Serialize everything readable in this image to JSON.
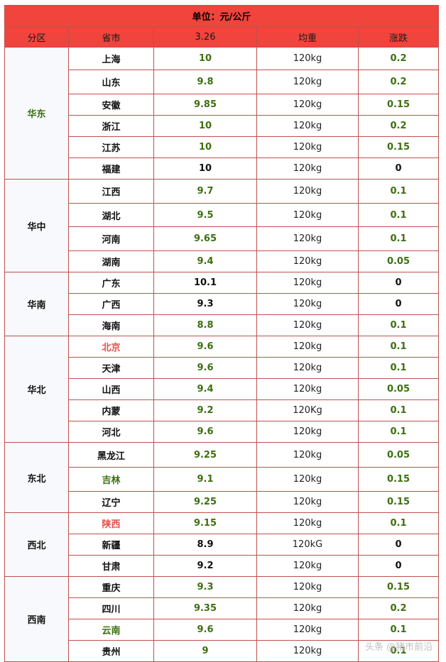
{
  "unit_label": "单位：元/公斤",
  "headers": {
    "region": "分区",
    "province": "省市",
    "date": "3.26",
    "weight": "均重",
    "change": "涨跌"
  },
  "colors": {
    "header_bg": "#f0443c",
    "date_text": "#ffd400",
    "green": "#3d6f10",
    "red": "#e0504b",
    "border": "#c0504d"
  },
  "regions": [
    {
      "name": "华东",
      "name_color": "green",
      "rows": [
        {
          "province": "上海",
          "province_color": "dark",
          "price": "10",
          "price_color": "green",
          "weight": "120kg",
          "weight_color": "dark",
          "change": "0.2",
          "change_color": "green"
        },
        {
          "province": "山东",
          "province_color": "dark",
          "price": "9.8",
          "price_color": "green",
          "weight": "120kg",
          "weight_color": "dark",
          "change": "0.2",
          "change_color": "green"
        },
        {
          "province": "安徽",
          "province_color": "dark",
          "price": "9.85",
          "price_color": "green",
          "weight": "120kg",
          "weight_color": "dark",
          "change": "0.15",
          "change_color": "green"
        },
        {
          "province": "浙江",
          "province_color": "dark",
          "price": "10",
          "price_color": "green",
          "weight": "120kg",
          "weight_color": "dark",
          "change": "0.2",
          "change_color": "green"
        },
        {
          "province": "江苏",
          "province_color": "dark",
          "price": "10",
          "price_color": "green",
          "weight": "120kg",
          "weight_color": "dark",
          "change": "0.15",
          "change_color": "green"
        },
        {
          "province": "福建",
          "province_color": "dark",
          "price": "10",
          "price_color": "dark",
          "weight": "120kg",
          "weight_color": "red",
          "change": "0",
          "change_color": "dark"
        }
      ]
    },
    {
      "name": "华中",
      "name_color": "dark",
      "rows": [
        {
          "province": "江西",
          "province_color": "dark",
          "price": "9.7",
          "price_color": "green",
          "weight": "120kg",
          "weight_color": "dark",
          "change": "0.1",
          "change_color": "green"
        },
        {
          "province": "湖北",
          "province_color": "dark",
          "price": "9.5",
          "price_color": "green",
          "weight": "120kg",
          "weight_color": "dark",
          "change": "0.1",
          "change_color": "green"
        },
        {
          "province": "河南",
          "province_color": "dark",
          "price": "9.65",
          "price_color": "green",
          "weight": "120kg",
          "weight_color": "red",
          "change": "0.1",
          "change_color": "green"
        },
        {
          "province": "湖南",
          "province_color": "dark",
          "price": "9.4",
          "price_color": "green",
          "weight": "120kg",
          "weight_color": "dark",
          "change": "0.05",
          "change_color": "green"
        }
      ]
    },
    {
      "name": "华南",
      "name_color": "dark",
      "rows": [
        {
          "province": "广东",
          "province_color": "dark",
          "price": "10.1",
          "price_color": "dark",
          "weight": "120kg",
          "weight_color": "red",
          "change": "0",
          "change_color": "dark"
        },
        {
          "province": "广西",
          "province_color": "dark",
          "price": "9.3",
          "price_color": "dark",
          "weight": "120kg",
          "weight_color": "dark",
          "change": "0",
          "change_color": "dark"
        },
        {
          "province": "海南",
          "province_color": "dark",
          "price": "8.8",
          "price_color": "green",
          "weight": "120kg",
          "weight_color": "dark",
          "change": "0.1",
          "change_color": "green"
        }
      ]
    },
    {
      "name": "华北",
      "name_color": "dark",
      "rows": [
        {
          "province": "北京",
          "province_color": "red",
          "price": "9.6",
          "price_color": "green",
          "weight": "120kg",
          "weight_color": "dark",
          "change": "0.1",
          "change_color": "green"
        },
        {
          "province": "天津",
          "province_color": "dark",
          "price": "9.6",
          "price_color": "green",
          "weight": "120kg",
          "weight_color": "dark",
          "change": "0.1",
          "change_color": "green"
        },
        {
          "province": "山西",
          "province_color": "dark",
          "price": "9.4",
          "price_color": "green",
          "weight": "120kg",
          "weight_color": "dark",
          "change": "0.05",
          "change_color": "green"
        },
        {
          "province": "内蒙",
          "province_color": "dark",
          "price": "9.2",
          "price_color": "green",
          "weight": "120Kg",
          "weight_color": "dark",
          "change": "0.1",
          "change_color": "green"
        },
        {
          "province": "河北",
          "province_color": "dark",
          "price": "9.6",
          "price_color": "green",
          "weight": "120kg",
          "weight_color": "dark",
          "change": "0.1",
          "change_color": "green"
        }
      ]
    },
    {
      "name": "东北",
      "name_color": "dark",
      "rows": [
        {
          "province": "黑龙江",
          "province_color": "dark",
          "price": "9.25",
          "price_color": "green",
          "weight": "120kg",
          "weight_color": "dark",
          "change": "0.05",
          "change_color": "green"
        },
        {
          "province": "吉林",
          "province_color": "green",
          "price": "9.1",
          "price_color": "green",
          "weight": "120kg",
          "weight_color": "dark",
          "change": "0.15",
          "change_color": "green"
        },
        {
          "province": "辽宁",
          "province_color": "dark",
          "price": "9.25",
          "price_color": "green",
          "weight": "120kg",
          "weight_color": "dark",
          "change": "0.15",
          "change_color": "green"
        }
      ]
    },
    {
      "name": "西北",
      "name_color": "dark",
      "rows": [
        {
          "province": "陕西",
          "province_color": "red",
          "price": "9.15",
          "price_color": "green",
          "weight": "120kg",
          "weight_color": "dark",
          "change": "0.1",
          "change_color": "green"
        },
        {
          "province": "新疆",
          "province_color": "dark",
          "price": "8.9",
          "price_color": "dark",
          "weight": "120kG",
          "weight_color": "dark",
          "change": "0",
          "change_color": "dark"
        },
        {
          "province": "甘肃",
          "province_color": "dark",
          "price": "9.2",
          "price_color": "dark",
          "weight": "120kg",
          "weight_color": "dark",
          "change": "0",
          "change_color": "dark"
        }
      ]
    },
    {
      "name": "西南",
      "name_color": "dark",
      "rows": [
        {
          "province": "重庆",
          "province_color": "dark",
          "price": "9.3",
          "price_color": "green",
          "weight": "120kg",
          "weight_color": "red",
          "change": "0.15",
          "change_color": "green"
        },
        {
          "province": "四川",
          "province_color": "dark",
          "price": "9.35",
          "price_color": "green",
          "weight": "120kg",
          "weight_color": "dark",
          "change": "0.2",
          "change_color": "green"
        },
        {
          "province": "云南",
          "province_color": "green",
          "price": "9.6",
          "price_color": "green",
          "weight": "120kg",
          "weight_color": "dark",
          "change": "0.1",
          "change_color": "green"
        },
        {
          "province": "贵州",
          "province_color": "dark",
          "price": "9",
          "price_color": "green",
          "weight": "120kg",
          "weight_color": "dark",
          "change": "0.1",
          "change_color": "green"
        }
      ]
    }
  ],
  "watermark": "头条 @猪市前沿"
}
